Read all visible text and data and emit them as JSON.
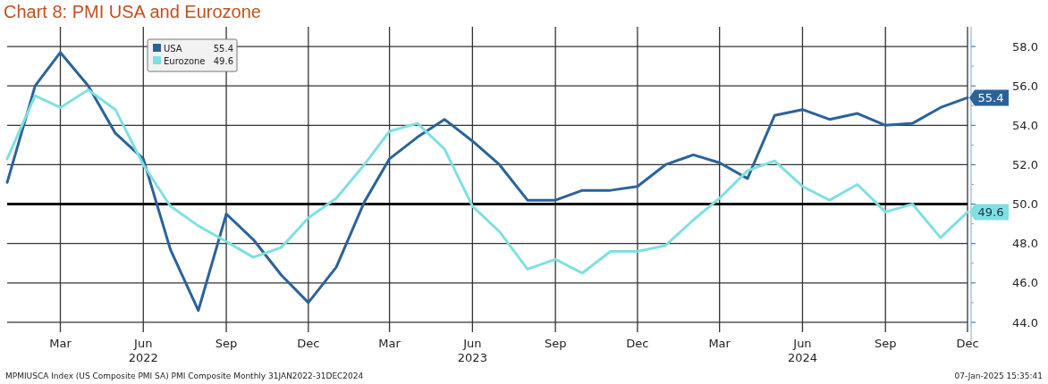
{
  "chart_data": {
    "type": "line",
    "title": "Chart 8: PMI USA and Eurozone",
    "x": [
      "2022-01",
      "2022-02",
      "2022-03",
      "2022-04",
      "2022-05",
      "2022-06",
      "2022-07",
      "2022-08",
      "2022-09",
      "2022-10",
      "2022-11",
      "2022-12",
      "2023-01",
      "2023-02",
      "2023-03",
      "2023-04",
      "2023-05",
      "2023-06",
      "2023-07",
      "2023-08",
      "2023-09",
      "2023-10",
      "2023-11",
      "2023-12",
      "2024-01",
      "2024-02",
      "2024-03",
      "2024-04",
      "2024-05",
      "2024-06",
      "2024-07",
      "2024-08",
      "2024-09",
      "2024-10",
      "2024-11",
      "2024-12"
    ],
    "series": [
      {
        "name": "USA",
        "color": "#2b6399",
        "values": [
          51.1,
          56.0,
          57.7,
          56.0,
          53.6,
          52.3,
          47.7,
          44.6,
          49.5,
          48.2,
          46.4,
          45.0,
          46.8,
          50.1,
          52.3,
          53.4,
          54.3,
          53.2,
          52.0,
          50.2,
          50.2,
          50.7,
          50.7,
          50.9,
          52.0,
          52.5,
          52.1,
          51.3,
          54.5,
          54.8,
          54.3,
          54.6,
          54.0,
          54.1,
          54.9,
          55.4
        ],
        "value_labels": [
          null,
          null,
          null,
          null,
          null,
          null,
          null,
          null,
          null,
          null,
          null,
          null,
          null,
          null,
          null,
          null,
          null,
          null,
          null,
          null,
          null,
          null,
          null,
          null,
          null,
          null,
          null,
          null,
          null,
          null,
          null,
          null,
          null,
          null,
          null,
          "55.4"
        ]
      },
      {
        "name": "Eurozone",
        "color": "#7fe0e0",
        "values": [
          52.3,
          55.5,
          54.9,
          55.8,
          54.8,
          52.0,
          49.9,
          48.9,
          48.1,
          47.3,
          47.8,
          49.3,
          50.3,
          52.0,
          53.7,
          54.1,
          52.8,
          49.9,
          48.6,
          46.7,
          47.2,
          46.5,
          47.6,
          47.6,
          47.9,
          49.2,
          50.3,
          51.7,
          52.2,
          50.9,
          50.2,
          51.0,
          49.6,
          50.0,
          48.3,
          49.6
        ],
        "value_labels": [
          null,
          null,
          null,
          null,
          null,
          null,
          null,
          null,
          null,
          null,
          null,
          null,
          null,
          null,
          null,
          null,
          null,
          null,
          null,
          null,
          null,
          null,
          null,
          null,
          null,
          null,
          null,
          null,
          null,
          null,
          null,
          null,
          null,
          null,
          null,
          "49.6"
        ]
      }
    ],
    "xlim": [
      "2022-01",
      "2024-12"
    ],
    "xticks": [
      {
        "value": "2022-03",
        "label": "Mar"
      },
      {
        "value": "2022-06",
        "label": "Jun\n2022"
      },
      {
        "value": "2022-09",
        "label": "Sep"
      },
      {
        "value": "2022-12",
        "label": "Dec"
      },
      {
        "value": "2023-03",
        "label": "Mar"
      },
      {
        "value": "2023-06",
        "label": "Jun\n2023"
      },
      {
        "value": "2023-09",
        "label": "Sep"
      },
      {
        "value": "2023-12",
        "label": "Dec"
      },
      {
        "value": "2024-03",
        "label": "Mar"
      },
      {
        "value": "2024-06",
        "label": "Jun\n2024"
      },
      {
        "value": "2024-09",
        "label": "Sep"
      },
      {
        "value": "2024-12",
        "label": "Dec"
      }
    ],
    "ylim": [
      43.5,
      59
    ],
    "yticks": [
      {
        "value": 44,
        "label": "44.0"
      },
      {
        "value": 46,
        "label": "46.0"
      },
      {
        "value": 48,
        "label": "48.0"
      },
      {
        "value": 50,
        "label": "50.0"
      },
      {
        "value": 52,
        "label": "52.0"
      },
      {
        "value": 54,
        "label": "54.0"
      },
      {
        "value": 56,
        "label": "56.0"
      },
      {
        "value": 58,
        "label": "58.0"
      }
    ],
    "ref_lines": [
      {
        "axis": "y",
        "value": 50,
        "color": "#111111"
      }
    ],
    "grid": true,
    "legend": "top left",
    "line_style": "solid",
    "marker": "none",
    "annotations": [
      "MPMIUSCA Index (US Composite PMI SA) PMI Composite  Monthly 31JAN2022-31DEC2024",
      "07-Jan-2025 15:35:41"
    ]
  }
}
